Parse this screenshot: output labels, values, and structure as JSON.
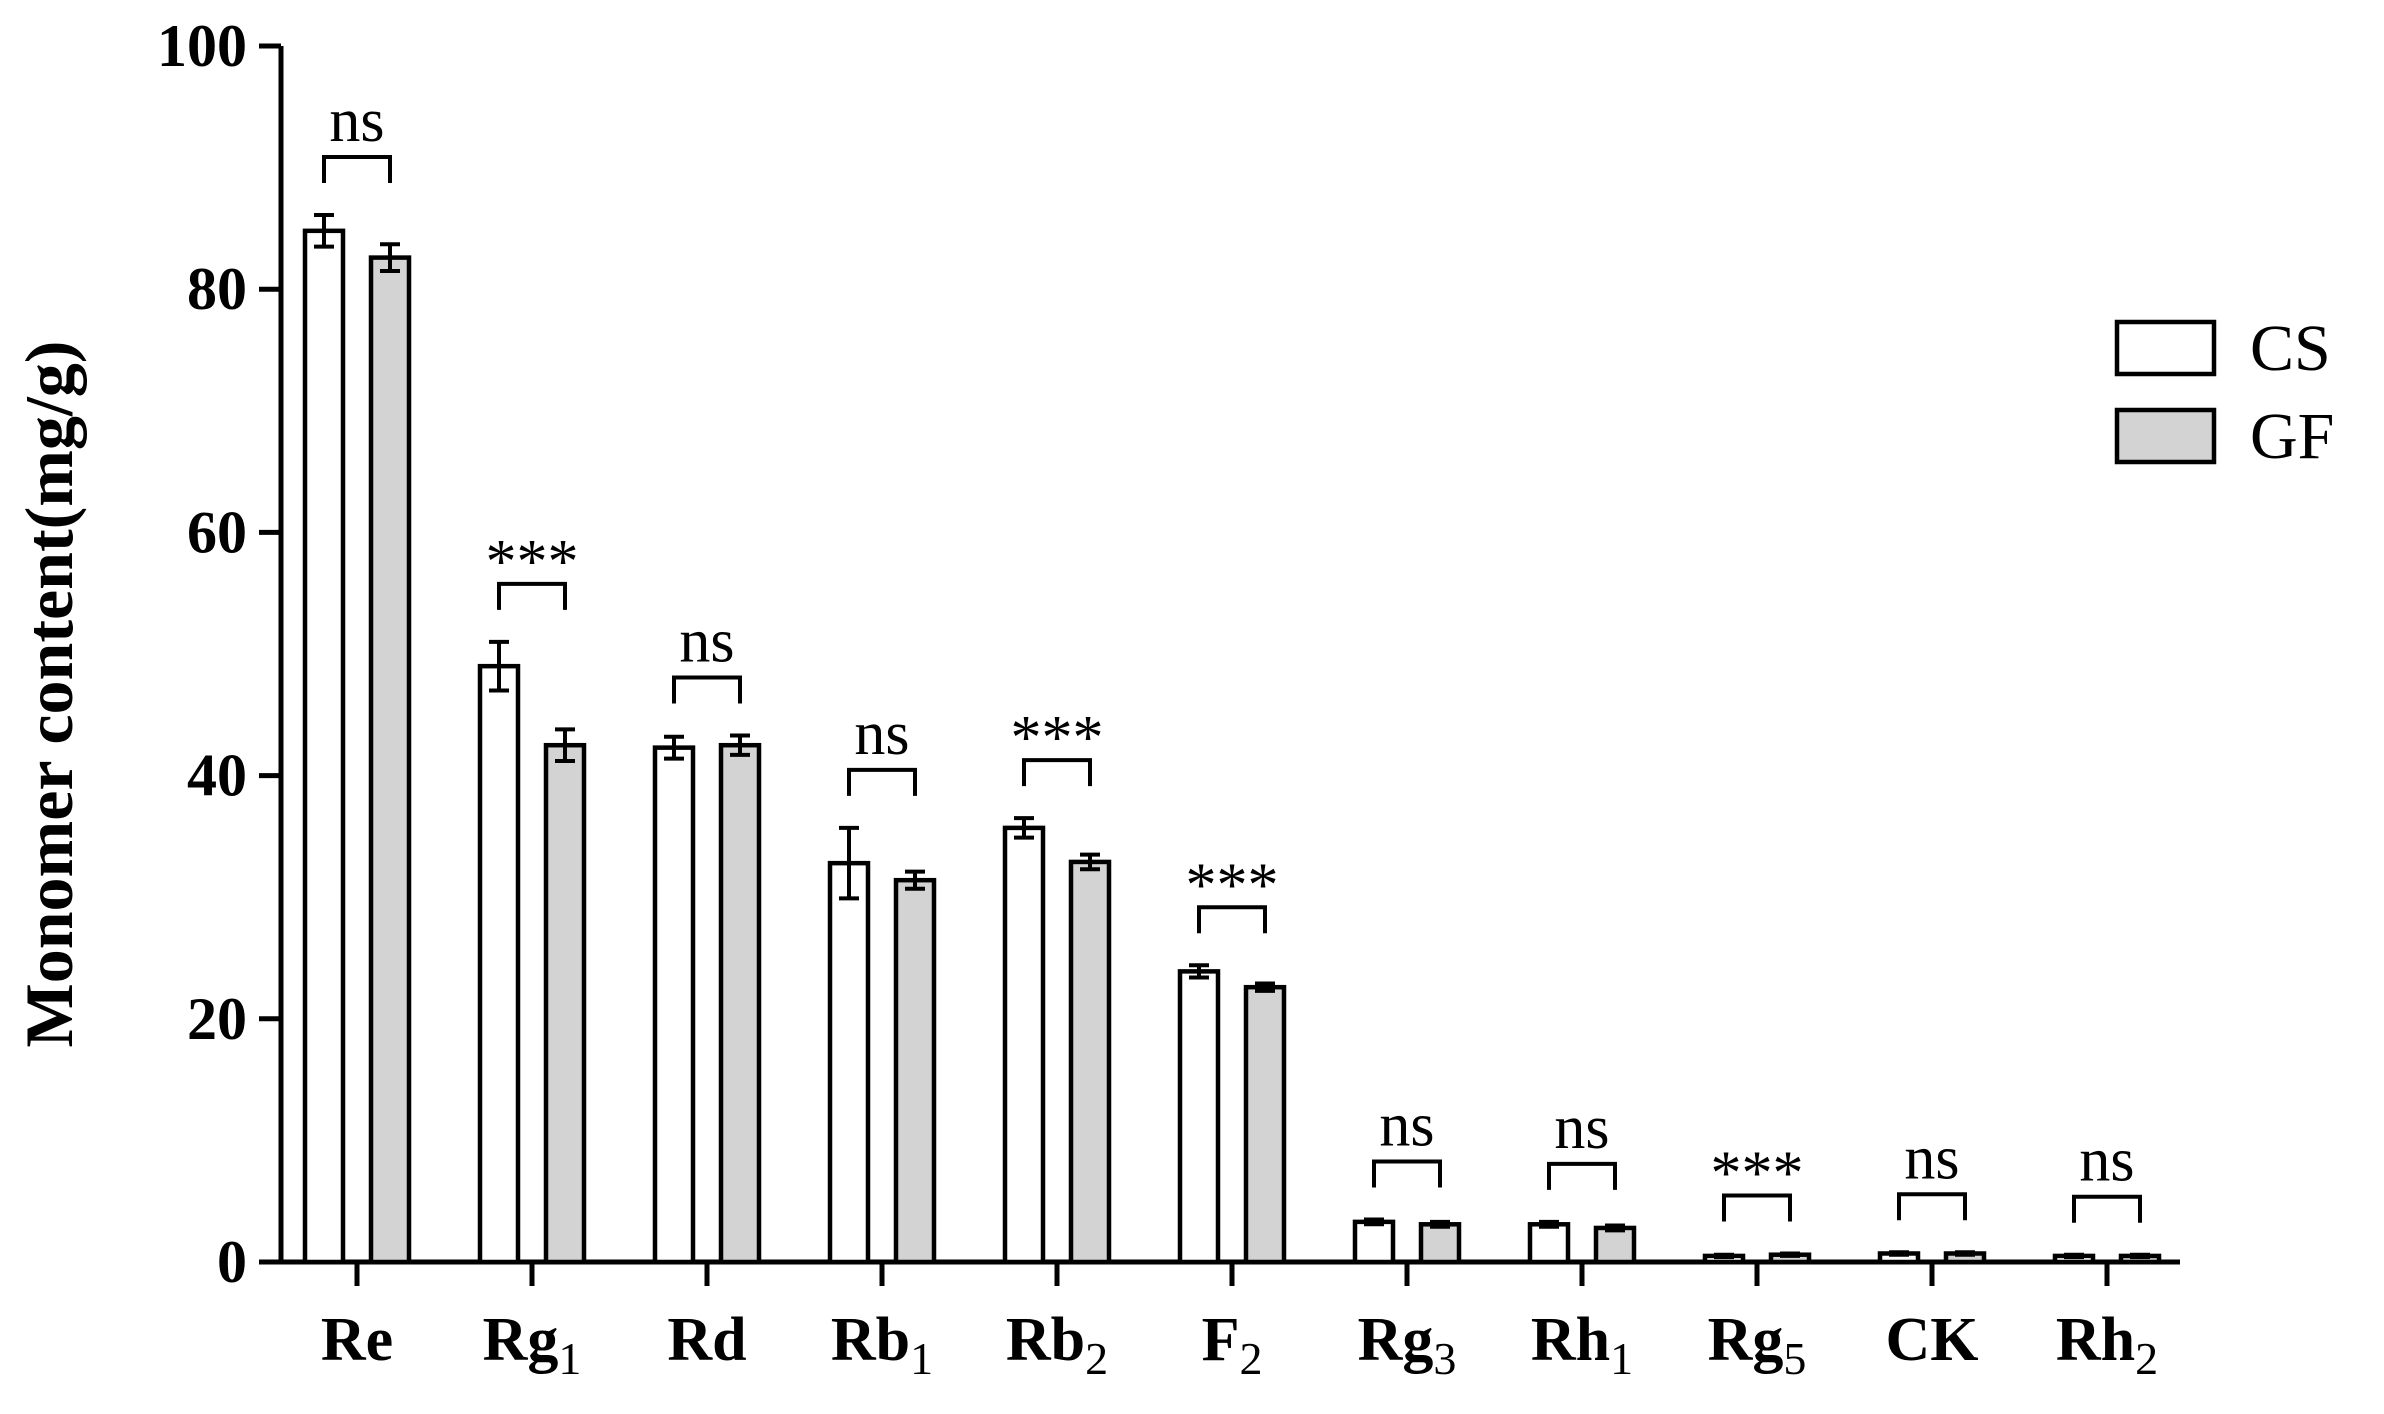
{
  "chart_data": {
    "type": "bar",
    "ylabel": "Monomer content(mg/g)",
    "ylim": [
      0,
      100
    ],
    "yticks": [
      "0",
      "20",
      "40",
      "60",
      "80",
      "100"
    ],
    "grid": false,
    "legend_position": "right",
    "categories": [
      {
        "base": "Re",
        "sub": ""
      },
      {
        "base": "Rg",
        "sub": "1"
      },
      {
        "base": "Rd",
        "sub": ""
      },
      {
        "base": "Rb",
        "sub": "1"
      },
      {
        "base": "Rb",
        "sub": "2"
      },
      {
        "base": "F",
        "sub": "2"
      },
      {
        "base": "Rg",
        "sub": "3"
      },
      {
        "base": "Rh",
        "sub": "1"
      },
      {
        "base": "Rg",
        "sub": "5"
      },
      {
        "base": "CK",
        "sub": ""
      },
      {
        "base": "Rh",
        "sub": "2"
      }
    ],
    "series": [
      {
        "name": "CS",
        "color": "#ffffff",
        "values": [
          84.8,
          49.0,
          42.3,
          32.8,
          35.7,
          23.9,
          3.3,
          3.1,
          0.5,
          0.7,
          0.5
        ],
        "errors": [
          1.3,
          2.0,
          0.9,
          2.9,
          0.8,
          0.5,
          0.2,
          0.2,
          0.1,
          0.1,
          0.1
        ]
      },
      {
        "name": "GF",
        "color": "#d3d3d3",
        "values": [
          82.6,
          42.5,
          42.5,
          31.4,
          32.9,
          22.6,
          3.1,
          2.8,
          0.6,
          0.7,
          0.5
        ],
        "errors": [
          1.1,
          1.3,
          0.8,
          0.7,
          0.6,
          0.3,
          0.2,
          0.2,
          0.1,
          0.1,
          0.1
        ]
      }
    ],
    "significance": [
      "ns",
      "***",
      "ns",
      "ns",
      "***",
      "***",
      "ns",
      "ns",
      "***",
      "ns",
      "ns"
    ]
  }
}
